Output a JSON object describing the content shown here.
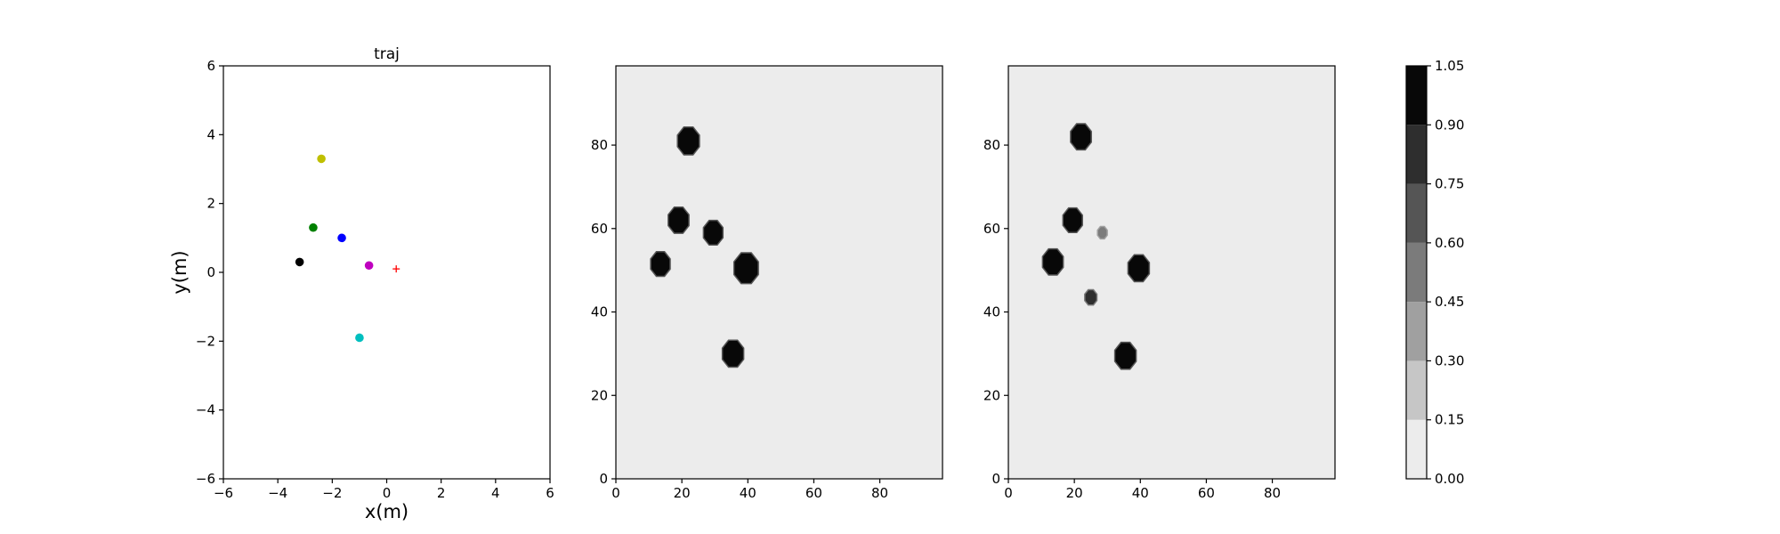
{
  "chart_data": [
    {
      "type": "scatter",
      "title": "traj",
      "xlabel": "x(m)",
      "ylabel": "y(m)",
      "xlim": [
        -6,
        6
      ],
      "ylim": [
        -6,
        6
      ],
      "xticks": [
        "−6",
        "−4",
        "−2",
        "0",
        "2",
        "4",
        "6"
      ],
      "yticks": [
        "−6",
        "−4",
        "−2",
        "0",
        "2",
        "4",
        "6"
      ],
      "grid": false,
      "points": [
        {
          "x": -2.4,
          "y": 3.3,
          "color": "#bfbf00",
          "marker": "circle"
        },
        {
          "x": -2.7,
          "y": 1.3,
          "color": "#008000",
          "marker": "circle"
        },
        {
          "x": -1.65,
          "y": 1.0,
          "color": "#0000ff",
          "marker": "circle"
        },
        {
          "x": -3.2,
          "y": 0.3,
          "color": "#000000",
          "marker": "circle"
        },
        {
          "x": -0.65,
          "y": 0.2,
          "color": "#bf00bf",
          "marker": "circle"
        },
        {
          "x": 0.35,
          "y": 0.1,
          "color": "#ff0000",
          "marker": "plus"
        },
        {
          "x": -1.0,
          "y": -1.9,
          "color": "#00bfbf",
          "marker": "circle"
        }
      ]
    },
    {
      "type": "heatmap",
      "xlim": [
        0,
        99
      ],
      "ylim": [
        0,
        99
      ],
      "xticks": [
        "0",
        "20",
        "40",
        "60",
        "80"
      ],
      "yticks": [
        "0",
        "20",
        "40",
        "60",
        "80"
      ],
      "background_value": 0.07,
      "blobs": [
        {
          "x": 22,
          "y": 81,
          "r": 3.6,
          "value": 1.0
        },
        {
          "x": 19,
          "y": 62,
          "r": 3.4,
          "value": 1.0
        },
        {
          "x": 29.5,
          "y": 59,
          "r": 3.2,
          "value": 1.0
        },
        {
          "x": 13.5,
          "y": 51.5,
          "r": 3.2,
          "value": 1.0
        },
        {
          "x": 39.5,
          "y": 50.5,
          "r": 4.0,
          "value": 1.0
        },
        {
          "x": 35.5,
          "y": 30,
          "r": 3.5,
          "value": 1.0
        }
      ]
    },
    {
      "type": "heatmap",
      "xlim": [
        0,
        99
      ],
      "ylim": [
        0,
        99
      ],
      "xticks": [
        "0",
        "20",
        "40",
        "60",
        "80"
      ],
      "yticks": [
        "0",
        "20",
        "40",
        "60",
        "80"
      ],
      "background_value": 0.07,
      "blobs": [
        {
          "x": 22,
          "y": 82,
          "r": 3.4,
          "value": 1.0
        },
        {
          "x": 19.5,
          "y": 62,
          "r": 3.2,
          "value": 1.0
        },
        {
          "x": 28.5,
          "y": 59,
          "r": 1.6,
          "value": 0.5
        },
        {
          "x": 13.5,
          "y": 52,
          "r": 3.4,
          "value": 1.0
        },
        {
          "x": 39.5,
          "y": 50.5,
          "r": 3.5,
          "value": 1.0
        },
        {
          "x": 25,
          "y": 43.5,
          "r": 2.0,
          "value": 0.75
        },
        {
          "x": 35.5,
          "y": 29.5,
          "r": 3.5,
          "value": 1.0
        }
      ]
    },
    {
      "type": "colorbar",
      "levels": [
        0.0,
        0.15,
        0.3,
        0.45,
        0.6,
        0.75,
        0.9,
        1.05
      ],
      "tick_labels": [
        "0.00",
        "0.15",
        "0.30",
        "0.45",
        "0.60",
        "0.75",
        "0.90",
        "1.05"
      ],
      "colors": [
        "#ececec",
        "#c6c6c6",
        "#a0a0a0",
        "#7b7b7b",
        "#555555",
        "#2e2e2e",
        "#080808"
      ]
    }
  ]
}
